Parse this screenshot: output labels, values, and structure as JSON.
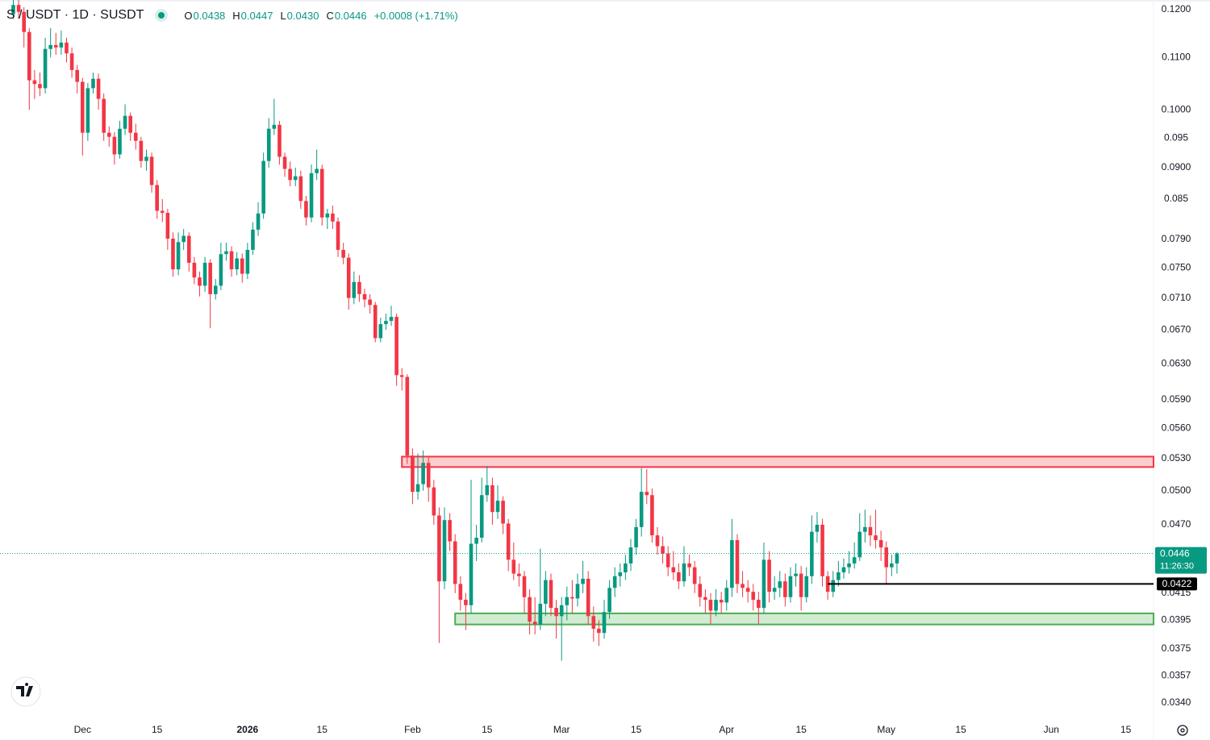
{
  "header": {
    "symbol": "S / USDT · 1D · SUSDT",
    "ohlc": [
      {
        "key": "O",
        "value": "0.0438"
      },
      {
        "key": "H",
        "value": "0.0447"
      },
      {
        "key": "L",
        "value": "0.0430"
      },
      {
        "key": "C",
        "value": "0.0446"
      }
    ],
    "change": "+0.0008 (+1.71%)"
  },
  "chart_data": {
    "type": "candlestick",
    "log_scale": true,
    "grid": false,
    "up_color": "#089981",
    "down_color": "#f23645",
    "xlim": [
      -15.5,
      201.2
    ],
    "ylim": [
      0.0331,
      0.1221
    ],
    "xticks": [
      {
        "value": 0,
        "label": "Dec"
      },
      {
        "value": 14,
        "label": "15"
      },
      {
        "value": 31,
        "label": "2026"
      },
      {
        "value": 45,
        "label": "15"
      },
      {
        "value": 62,
        "label": "Feb"
      },
      {
        "value": 76,
        "label": "15"
      },
      {
        "value": 90,
        "label": "Mar"
      },
      {
        "value": 104,
        "label": "15"
      },
      {
        "value": 121,
        "label": "Apr"
      },
      {
        "value": 135,
        "label": "15"
      },
      {
        "value": 151,
        "label": "May"
      },
      {
        "value": 165,
        "label": "15"
      },
      {
        "value": 182,
        "label": "Jun"
      },
      {
        "value": 196,
        "label": "15"
      }
    ],
    "yticks": [
      {
        "value": 0.12,
        "label": "0.1200"
      },
      {
        "value": 0.11,
        "label": "0.1100"
      },
      {
        "value": 0.1,
        "label": "0.1000"
      },
      0.095,
      {
        "value": 0.09,
        "label": "0.0900"
      },
      0.085,
      {
        "value": 0.079,
        "label": "0.0790"
      },
      {
        "value": 0.075,
        "label": "0.0750"
      },
      {
        "value": 0.071,
        "label": "0.0710"
      },
      {
        "value": 0.067,
        "label": "0.0670"
      },
      {
        "value": 0.063,
        "label": "0.0630"
      },
      {
        "value": 0.059,
        "label": "0.0590"
      },
      {
        "value": 0.056,
        "label": "0.0560"
      },
      {
        "value": 0.053,
        "label": "0.0530"
      },
      {
        "value": 0.05,
        "label": "0.0500"
      },
      {
        "value": 0.047,
        "label": "0.0470"
      },
      0.0415,
      0.0395,
      0.0375,
      0.0357,
      {
        "value": 0.034,
        "label": "0.0340"
      }
    ],
    "x": [
      -13,
      -12,
      -11,
      -10,
      -9,
      -8,
      -7,
      -6,
      -5,
      -4,
      -3,
      -2,
      -1,
      0,
      1,
      2,
      3,
      4,
      5,
      6,
      7,
      8,
      9,
      10,
      11,
      12,
      13,
      14,
      15,
      16,
      17,
      18,
      19,
      20,
      21,
      22,
      23,
      24,
      25,
      26,
      27,
      28,
      29,
      30,
      31,
      32,
      33,
      34,
      35,
      36,
      37,
      38,
      39,
      40,
      41,
      42,
      43,
      44,
      45,
      46,
      47,
      48,
      49,
      50,
      51,
      52,
      53,
      54,
      55,
      56,
      57,
      58,
      59,
      60,
      61,
      62,
      63,
      64,
      65,
      66,
      67,
      68,
      69,
      70,
      71,
      72,
      73,
      74,
      75,
      76,
      77,
      78,
      79,
      80,
      81,
      82,
      83,
      84,
      85,
      86,
      87,
      88,
      89,
      90,
      91,
      92,
      93,
      94,
      95,
      96,
      97,
      98,
      99,
      100,
      101,
      102,
      103,
      104,
      105,
      106,
      107,
      108,
      109,
      110,
      111,
      112,
      113,
      114,
      115,
      116,
      117,
      118,
      119,
      120,
      121,
      122,
      123,
      124,
      125,
      126,
      127,
      128,
      129,
      130,
      131,
      132,
      133,
      134,
      135,
      136,
      137,
      138,
      139,
      140,
      141,
      142,
      143,
      144,
      145,
      146,
      147,
      148,
      149,
      150,
      151,
      152,
      153
    ],
    "open": [
      0.119,
      0.121,
      0.1195,
      0.1152,
      0.1055,
      0.1048,
      0.104,
      0.1117,
      0.1125,
      0.112,
      0.113,
      0.1108,
      0.1075,
      0.1052,
      0.0959,
      0.104,
      0.1058,
      0.102,
      0.0959,
      0.0952,
      0.0922,
      0.0966,
      0.0989,
      0.0959,
      0.0945,
      0.0911,
      0.0918,
      0.0872,
      0.0832,
      0.0829,
      0.0791,
      0.0748,
      0.0786,
      0.0795,
      0.0757,
      0.0737,
      0.0726,
      0.0757,
      0.0715,
      0.0726,
      0.0769,
      0.0773,
      0.0748,
      0.0763,
      0.0742,
      0.0775,
      0.0804,
      0.0828,
      0.0911,
      0.0966,
      0.0973,
      0.0918,
      0.0898,
      0.088,
      0.0886,
      0.0847,
      0.0822,
      0.0891,
      0.0898,
      0.0822,
      0.0828,
      0.0816,
      0.0775,
      0.0764,
      0.071,
      0.0731,
      0.0715,
      0.0708,
      0.0701,
      0.066,
      0.0677,
      0.0681,
      0.0686,
      0.0617,
      0.0615,
      0.0533,
      0.0499,
      0.0506,
      0.0526,
      0.0503,
      0.0478,
      0.0424,
      0.0474,
      0.0456,
      0.0422,
      0.041,
      0.0406,
      0.0454,
      0.0459,
      0.0496,
      0.0505,
      0.0481,
      0.0491,
      0.0471,
      0.0441,
      0.043,
      0.0428,
      0.0412,
      0.0394,
      0.0392,
      0.0407,
      0.0425,
      0.0404,
      0.0398,
      0.0406,
      0.0412,
      0.0411,
      0.0422,
      0.0426,
      0.0398,
      0.0389,
      0.0386,
      0.0401,
      0.0419,
      0.0428,
      0.0431,
      0.0438,
      0.0451,
      0.0468,
      0.0499,
      0.0496,
      0.0461,
      0.0452,
      0.0446,
      0.0435,
      0.0431,
      0.0424,
      0.0438,
      0.0435,
      0.0422,
      0.0412,
      0.041,
      0.0402,
      0.041,
      0.0408,
      0.0419,
      0.0457,
      0.0422,
      0.0419,
      0.0416,
      0.041,
      0.0404,
      0.0441,
      0.0416,
      0.0419,
      0.0424,
      0.0412,
      0.0428,
      0.043,
      0.0412,
      0.0428,
      0.0464,
      0.047,
      0.0428,
      0.0416,
      0.0425,
      0.0431,
      0.0435,
      0.0438,
      0.0443,
      0.0464,
      0.0468,
      0.0461,
      0.0457,
      0.0451,
      0.0435,
      0.0438
    ],
    "high": [
      0.1225,
      0.1222,
      0.1205,
      0.116,
      0.1075,
      0.107,
      0.114,
      0.116,
      0.115,
      0.1155,
      0.114,
      0.112,
      0.1085,
      0.106,
      0.105,
      0.107,
      0.1068,
      0.103,
      0.097,
      0.096,
      0.098,
      0.101,
      0.0995,
      0.0975,
      0.0952,
      0.093,
      0.0925,
      0.088,
      0.085,
      0.0835,
      0.08,
      0.08,
      0.0805,
      0.08,
      0.0765,
      0.0745,
      0.0765,
      0.0762,
      0.0735,
      0.0785,
      0.0785,
      0.078,
      0.0772,
      0.077,
      0.0785,
      0.0815,
      0.0845,
      0.0925,
      0.0985,
      0.102,
      0.098,
      0.0925,
      0.091,
      0.09,
      0.0895,
      0.0855,
      0.0905,
      0.093,
      0.0905,
      0.0835,
      0.084,
      0.0822,
      0.0785,
      0.077,
      0.0745,
      0.074,
      0.0722,
      0.0715,
      0.0705,
      0.0685,
      0.069,
      0.07,
      0.069,
      0.0625,
      0.0618,
      0.054,
      0.0535,
      0.0538,
      0.0532,
      0.051,
      0.0485,
      0.0485,
      0.048,
      0.0462,
      0.0428,
      0.0415,
      0.051,
      0.047,
      0.0512,
      0.0523,
      0.0512,
      0.0505,
      0.0495,
      0.0475,
      0.0455,
      0.0438,
      0.0432,
      0.0418,
      0.0412,
      0.045,
      0.0432,
      0.043,
      0.041,
      0.0412,
      0.042,
      0.0425,
      0.043,
      0.044,
      0.0432,
      0.0405,
      0.0395,
      0.041,
      0.0425,
      0.0435,
      0.0438,
      0.0445,
      0.0458,
      0.0475,
      0.0521,
      0.052,
      0.0502,
      0.0468,
      0.046,
      0.0452,
      0.0448,
      0.0438,
      0.0452,
      0.0445,
      0.044,
      0.0428,
      0.0418,
      0.0415,
      0.0418,
      0.0416,
      0.0425,
      0.0475,
      0.0462,
      0.0432,
      0.0425,
      0.0422,
      0.0416,
      0.0455,
      0.0448,
      0.0428,
      0.0432,
      0.043,
      0.0435,
      0.0438,
      0.0436,
      0.0435,
      0.0478,
      0.0481,
      0.0475,
      0.0432,
      0.0432,
      0.044,
      0.0442,
      0.0448,
      0.0455,
      0.048,
      0.0483,
      0.0478,
      0.0483,
      0.0465,
      0.0456,
      0.0445,
      0.0447
    ],
    "low": [
      0.118,
      0.118,
      0.112,
      0.1,
      0.102,
      0.1025,
      0.103,
      0.11,
      0.1105,
      0.1105,
      0.109,
      0.106,
      0.103,
      0.092,
      0.0945,
      0.103,
      0.1,
      0.0945,
      0.0935,
      0.0905,
      0.0915,
      0.0955,
      0.0945,
      0.093,
      0.09,
      0.0895,
      0.086,
      0.082,
      0.0815,
      0.0775,
      0.0738,
      0.074,
      0.0775,
      0.0745,
      0.0728,
      0.0712,
      0.0718,
      0.0672,
      0.0708,
      0.072,
      0.076,
      0.0738,
      0.074,
      0.073,
      0.0735,
      0.0768,
      0.0795,
      0.082,
      0.09,
      0.0955,
      0.0905,
      0.0885,
      0.087,
      0.087,
      0.0835,
      0.081,
      0.0815,
      0.088,
      0.081,
      0.0805,
      0.0805,
      0.0765,
      0.0755,
      0.0695,
      0.0702,
      0.0705,
      0.0698,
      0.069,
      0.0655,
      0.0655,
      0.067,
      0.0675,
      0.0605,
      0.06,
      0.0525,
      0.0488,
      0.0492,
      0.05,
      0.049,
      0.047,
      0.0379,
      0.0418,
      0.0448,
      0.0415,
      0.0402,
      0.0388,
      0.04,
      0.044,
      0.0455,
      0.049,
      0.047,
      0.0475,
      0.0462,
      0.0432,
      0.0425,
      0.042,
      0.04,
      0.0385,
      0.0385,
      0.0388,
      0.0398,
      0.0398,
      0.0382,
      0.0367,
      0.0395,
      0.04,
      0.0405,
      0.0415,
      0.0392,
      0.038,
      0.0377,
      0.0382,
      0.0396,
      0.0412,
      0.042,
      0.0425,
      0.0432,
      0.0445,
      0.046,
      0.0488,
      0.0455,
      0.0445,
      0.0438,
      0.0428,
      0.0425,
      0.0418,
      0.042,
      0.0428,
      0.0415,
      0.0405,
      0.04,
      0.0392,
      0.0398,
      0.04,
      0.0402,
      0.0412,
      0.0415,
      0.0412,
      0.0408,
      0.0402,
      0.0392,
      0.04,
      0.0408,
      0.041,
      0.0412,
      0.0405,
      0.0408,
      0.042,
      0.0402,
      0.0408,
      0.0422,
      0.0455,
      0.042,
      0.041,
      0.0412,
      0.042,
      0.0426,
      0.043,
      0.0434,
      0.044,
      0.0455,
      0.0452,
      0.045,
      0.044,
      0.0422,
      0.0428,
      0.043
    ],
    "close": [
      0.121,
      0.1195,
      0.1152,
      0.1055,
      0.1048,
      0.104,
      0.1117,
      0.1125,
      0.112,
      0.113,
      0.1108,
      0.1075,
      0.1052,
      0.0959,
      0.104,
      0.1058,
      0.102,
      0.0959,
      0.0952,
      0.0922,
      0.0966,
      0.0989,
      0.0959,
      0.0945,
      0.0911,
      0.0918,
      0.0872,
      0.0832,
      0.0829,
      0.0791,
      0.0748,
      0.0786,
      0.0795,
      0.0757,
      0.0737,
      0.0726,
      0.0757,
      0.0715,
      0.0726,
      0.0769,
      0.0773,
      0.0748,
      0.0763,
      0.0742,
      0.0775,
      0.0804,
      0.0828,
      0.0911,
      0.0966,
      0.0973,
      0.0918,
      0.0898,
      0.088,
      0.0886,
      0.0847,
      0.0822,
      0.0891,
      0.0898,
      0.0822,
      0.0828,
      0.0816,
      0.0775,
      0.0764,
      0.071,
      0.0731,
      0.0715,
      0.0708,
      0.0701,
      0.066,
      0.0677,
      0.0681,
      0.0686,
      0.0617,
      0.0615,
      0.0533,
      0.0499,
      0.0506,
      0.0526,
      0.0503,
      0.0478,
      0.0424,
      0.0474,
      0.0456,
      0.0422,
      0.041,
      0.0406,
      0.0454,
      0.0459,
      0.0496,
      0.0505,
      0.0481,
      0.0491,
      0.0471,
      0.0441,
      0.043,
      0.0428,
      0.0412,
      0.0394,
      0.0392,
      0.0407,
      0.0425,
      0.0404,
      0.0398,
      0.0406,
      0.0412,
      0.0411,
      0.0422,
      0.0426,
      0.0398,
      0.0389,
      0.0386,
      0.0401,
      0.0419,
      0.0428,
      0.0431,
      0.0438,
      0.0451,
      0.0468,
      0.0499,
      0.0496,
      0.0461,
      0.0452,
      0.0446,
      0.0435,
      0.0431,
      0.0424,
      0.0438,
      0.0435,
      0.0422,
      0.0412,
      0.041,
      0.0402,
      0.041,
      0.0408,
      0.0419,
      0.0457,
      0.0422,
      0.0419,
      0.0416,
      0.041,
      0.0404,
      0.0441,
      0.0416,
      0.0419,
      0.0424,
      0.0412,
      0.0428,
      0.043,
      0.0412,
      0.0428,
      0.0464,
      0.047,
      0.0428,
      0.0416,
      0.0425,
      0.0431,
      0.0435,
      0.0438,
      0.0443,
      0.0464,
      0.0468,
      0.0461,
      0.0457,
      0.0451,
      0.0435,
      0.0438,
      0.0446
    ],
    "countdown": "11:26:30",
    "zones": [
      {
        "top": 0.0532,
        "bottom": 0.0522,
        "start": 60,
        "color": "#f23645"
      },
      {
        "top": 0.04,
        "bottom": 0.0392,
        "start": 70,
        "color": "#4caf50"
      }
    ],
    "levels": [
      {
        "value": 0.0422,
        "start": 140,
        "color": "#000000"
      }
    ]
  }
}
